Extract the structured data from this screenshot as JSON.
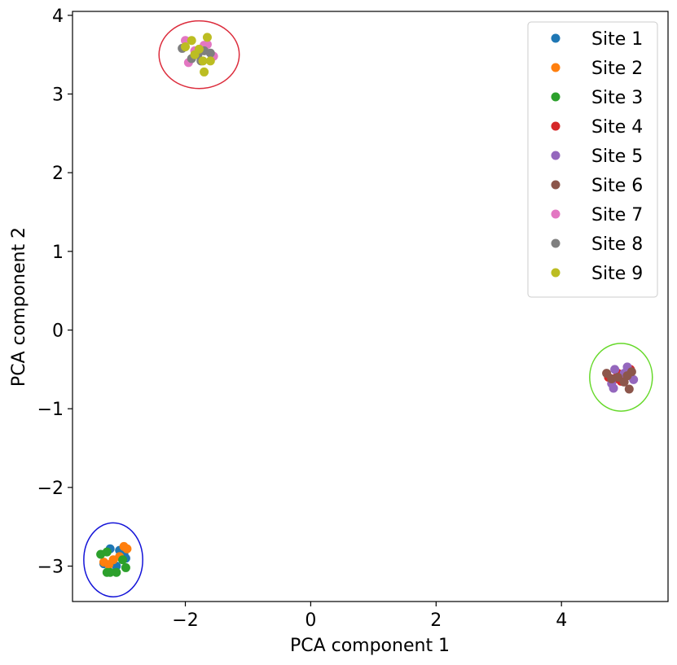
{
  "chart_data": {
    "type": "scatter",
    "title": "",
    "xlabel": "PCA component 1",
    "ylabel": "PCA component 2",
    "xlim": [
      -3.8,
      5.7
    ],
    "ylim": [
      -3.45,
      4.05
    ],
    "xticks": [
      -2,
      0,
      2,
      4
    ],
    "yticks": [
      -3,
      -2,
      -1,
      0,
      1,
      2,
      3,
      4
    ],
    "xtick_labels": [
      "−2",
      "0",
      "2",
      "4"
    ],
    "ytick_labels": [
      "−3",
      "−2",
      "−1",
      "0",
      "1",
      "2",
      "3",
      "4"
    ],
    "legend_position": "top-right",
    "grid": false,
    "series": [
      {
        "name": "Site 1",
        "color": "#1f77b4",
        "points": [
          [
            -3.2,
            -2.78
          ],
          [
            -3.05,
            -2.8
          ],
          [
            -2.95,
            -2.9
          ],
          [
            -3.3,
            -2.97
          ],
          [
            -3.1,
            -3.0
          ],
          [
            -2.98,
            -2.85
          ]
        ]
      },
      {
        "name": "Site 2",
        "color": "#ff7f0e",
        "points": [
          [
            -2.98,
            -2.75
          ],
          [
            -2.93,
            -2.78
          ],
          [
            -3.22,
            -2.98
          ],
          [
            -3.15,
            -2.92
          ],
          [
            -3.3,
            -2.95
          ],
          [
            -3.05,
            -2.88
          ]
        ]
      },
      {
        "name": "Site 3",
        "color": "#2ca02c",
        "points": [
          [
            -3.35,
            -2.85
          ],
          [
            -3.25,
            -2.82
          ],
          [
            -3.0,
            -2.92
          ],
          [
            -2.95,
            -3.02
          ],
          [
            -3.1,
            -3.08
          ],
          [
            -3.25,
            -3.08
          ],
          [
            -3.2,
            -3.08
          ]
        ]
      },
      {
        "name": "Site 4",
        "color": "#d62728",
        "points": [
          [
            5.1,
            -0.5
          ],
          [
            4.9,
            -0.55
          ],
          [
            4.75,
            -0.6
          ],
          [
            4.95,
            -0.65
          ],
          [
            5.05,
            -0.58
          ],
          [
            4.85,
            -0.62
          ]
        ]
      },
      {
        "name": "Site 5",
        "color": "#9467bd",
        "points": [
          [
            4.85,
            -0.5
          ],
          [
            5.05,
            -0.47
          ],
          [
            5.15,
            -0.63
          ],
          [
            4.8,
            -0.68
          ],
          [
            4.83,
            -0.74
          ],
          [
            5.0,
            -0.55
          ]
        ]
      },
      {
        "name": "Site 6",
        "color": "#8c564b",
        "points": [
          [
            4.72,
            -0.55
          ],
          [
            4.8,
            -0.62
          ],
          [
            4.9,
            -0.6
          ],
          [
            5.05,
            -0.58
          ],
          [
            5.0,
            -0.66
          ],
          [
            5.08,
            -0.75
          ],
          [
            5.12,
            -0.53
          ]
        ]
      },
      {
        "name": "Site 7",
        "color": "#e377c2",
        "points": [
          [
            -2.0,
            3.68
          ],
          [
            -1.7,
            3.62
          ],
          [
            -1.95,
            3.4
          ],
          [
            -1.55,
            3.48
          ],
          [
            -1.65,
            3.63
          ],
          [
            -1.85,
            3.55
          ]
        ]
      },
      {
        "name": "Site 8",
        "color": "#7f7f7f",
        "points": [
          [
            -1.9,
            3.45
          ],
          [
            -1.8,
            3.5
          ],
          [
            -1.7,
            3.55
          ],
          [
            -2.05,
            3.58
          ],
          [
            -1.75,
            3.42
          ],
          [
            -1.6,
            3.52
          ]
        ]
      },
      {
        "name": "Site 9",
        "color": "#bcbd22",
        "points": [
          [
            -1.9,
            3.68
          ],
          [
            -1.65,
            3.72
          ],
          [
            -2.0,
            3.6
          ],
          [
            -1.85,
            3.5
          ],
          [
            -1.72,
            3.42
          ],
          [
            -1.7,
            3.28
          ],
          [
            -1.6,
            3.42
          ],
          [
            -1.78,
            3.57
          ]
        ]
      }
    ],
    "ellipses": [
      {
        "name": "cluster-sites-7-9",
        "color": "#dc2c3c",
        "center": [
          -1.78,
          3.5
        ],
        "rx": 0.64,
        "ry": 0.43
      },
      {
        "name": "cluster-sites-4-6",
        "color": "#66d92a",
        "center": [
          4.95,
          -0.6
        ],
        "rx": 0.5,
        "ry": 0.43
      },
      {
        "name": "cluster-sites-1-3",
        "color": "#1414d8",
        "center": [
          -3.15,
          -2.92
        ],
        "rx": 0.47,
        "ry": 0.47
      }
    ]
  }
}
